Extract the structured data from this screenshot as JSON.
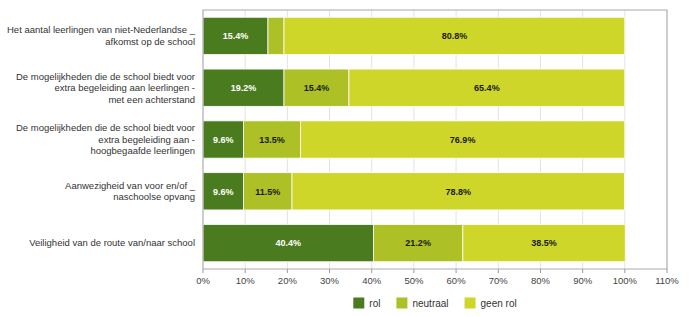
{
  "chart_data": {
    "type": "bar",
    "orientation": "horizontal",
    "stacked": true,
    "data_labels": true,
    "grid": true,
    "legend": "bottom",
    "categories": [
      "Het aantal leerlingen van niet-Nederlandse _\nafkomst op de school",
      "De mogelijkheden die de school biedt voor\nextra begeleiding aan leerlingen -\nmet een achterstand",
      "De mogelijkheden die de school biedt voor\nextra begeleiding aan -\nhoogbegaafde leerlingen",
      "Aanwezigheid van voor en/of _\nnaschoolse opvang",
      "Veiligheid van de route van/naar school"
    ],
    "series": [
      {
        "name": "rol",
        "color": "#4a7c1f",
        "values": [
          15.4,
          19.2,
          9.6,
          9.6,
          40.4
        ],
        "value_labels": [
          "15.4%",
          "19.2%",
          "9.6%",
          "9.6%",
          "40.4%"
        ]
      },
      {
        "name": "neutraal",
        "color": "#adc025",
        "values": [
          3.8,
          15.4,
          13.5,
          11.5,
          21.2
        ],
        "value_labels": [
          null,
          "15.4%",
          "13.5%",
          "11.5%",
          "21.2%"
        ]
      },
      {
        "name": "geen rol",
        "color": "#cfd62a",
        "values": [
          80.8,
          65.4,
          76.9,
          78.8,
          38.5
        ],
        "value_labels": [
          "80.8%",
          "65.4%",
          "76.9%",
          "78.8%",
          "38.5%"
        ]
      }
    ],
    "xlim": [
      0,
      110
    ],
    "xticks": [
      {
        "value": 0,
        "label": "0%"
      },
      {
        "value": 10,
        "label": "10%"
      },
      {
        "value": 20,
        "label": "20%"
      },
      {
        "value": 30,
        "label": "30%"
      },
      {
        "value": 40,
        "label": "40%"
      },
      {
        "value": 50,
        "label": "50%"
      },
      {
        "value": 60,
        "label": "60%"
      },
      {
        "value": 70,
        "label": "70%"
      },
      {
        "value": 80,
        "label": "80%"
      },
      {
        "value": 90,
        "label": "90%"
      },
      {
        "value": 100,
        "label": "100%"
      },
      {
        "value": 110,
        "label": "110%"
      }
    ]
  }
}
